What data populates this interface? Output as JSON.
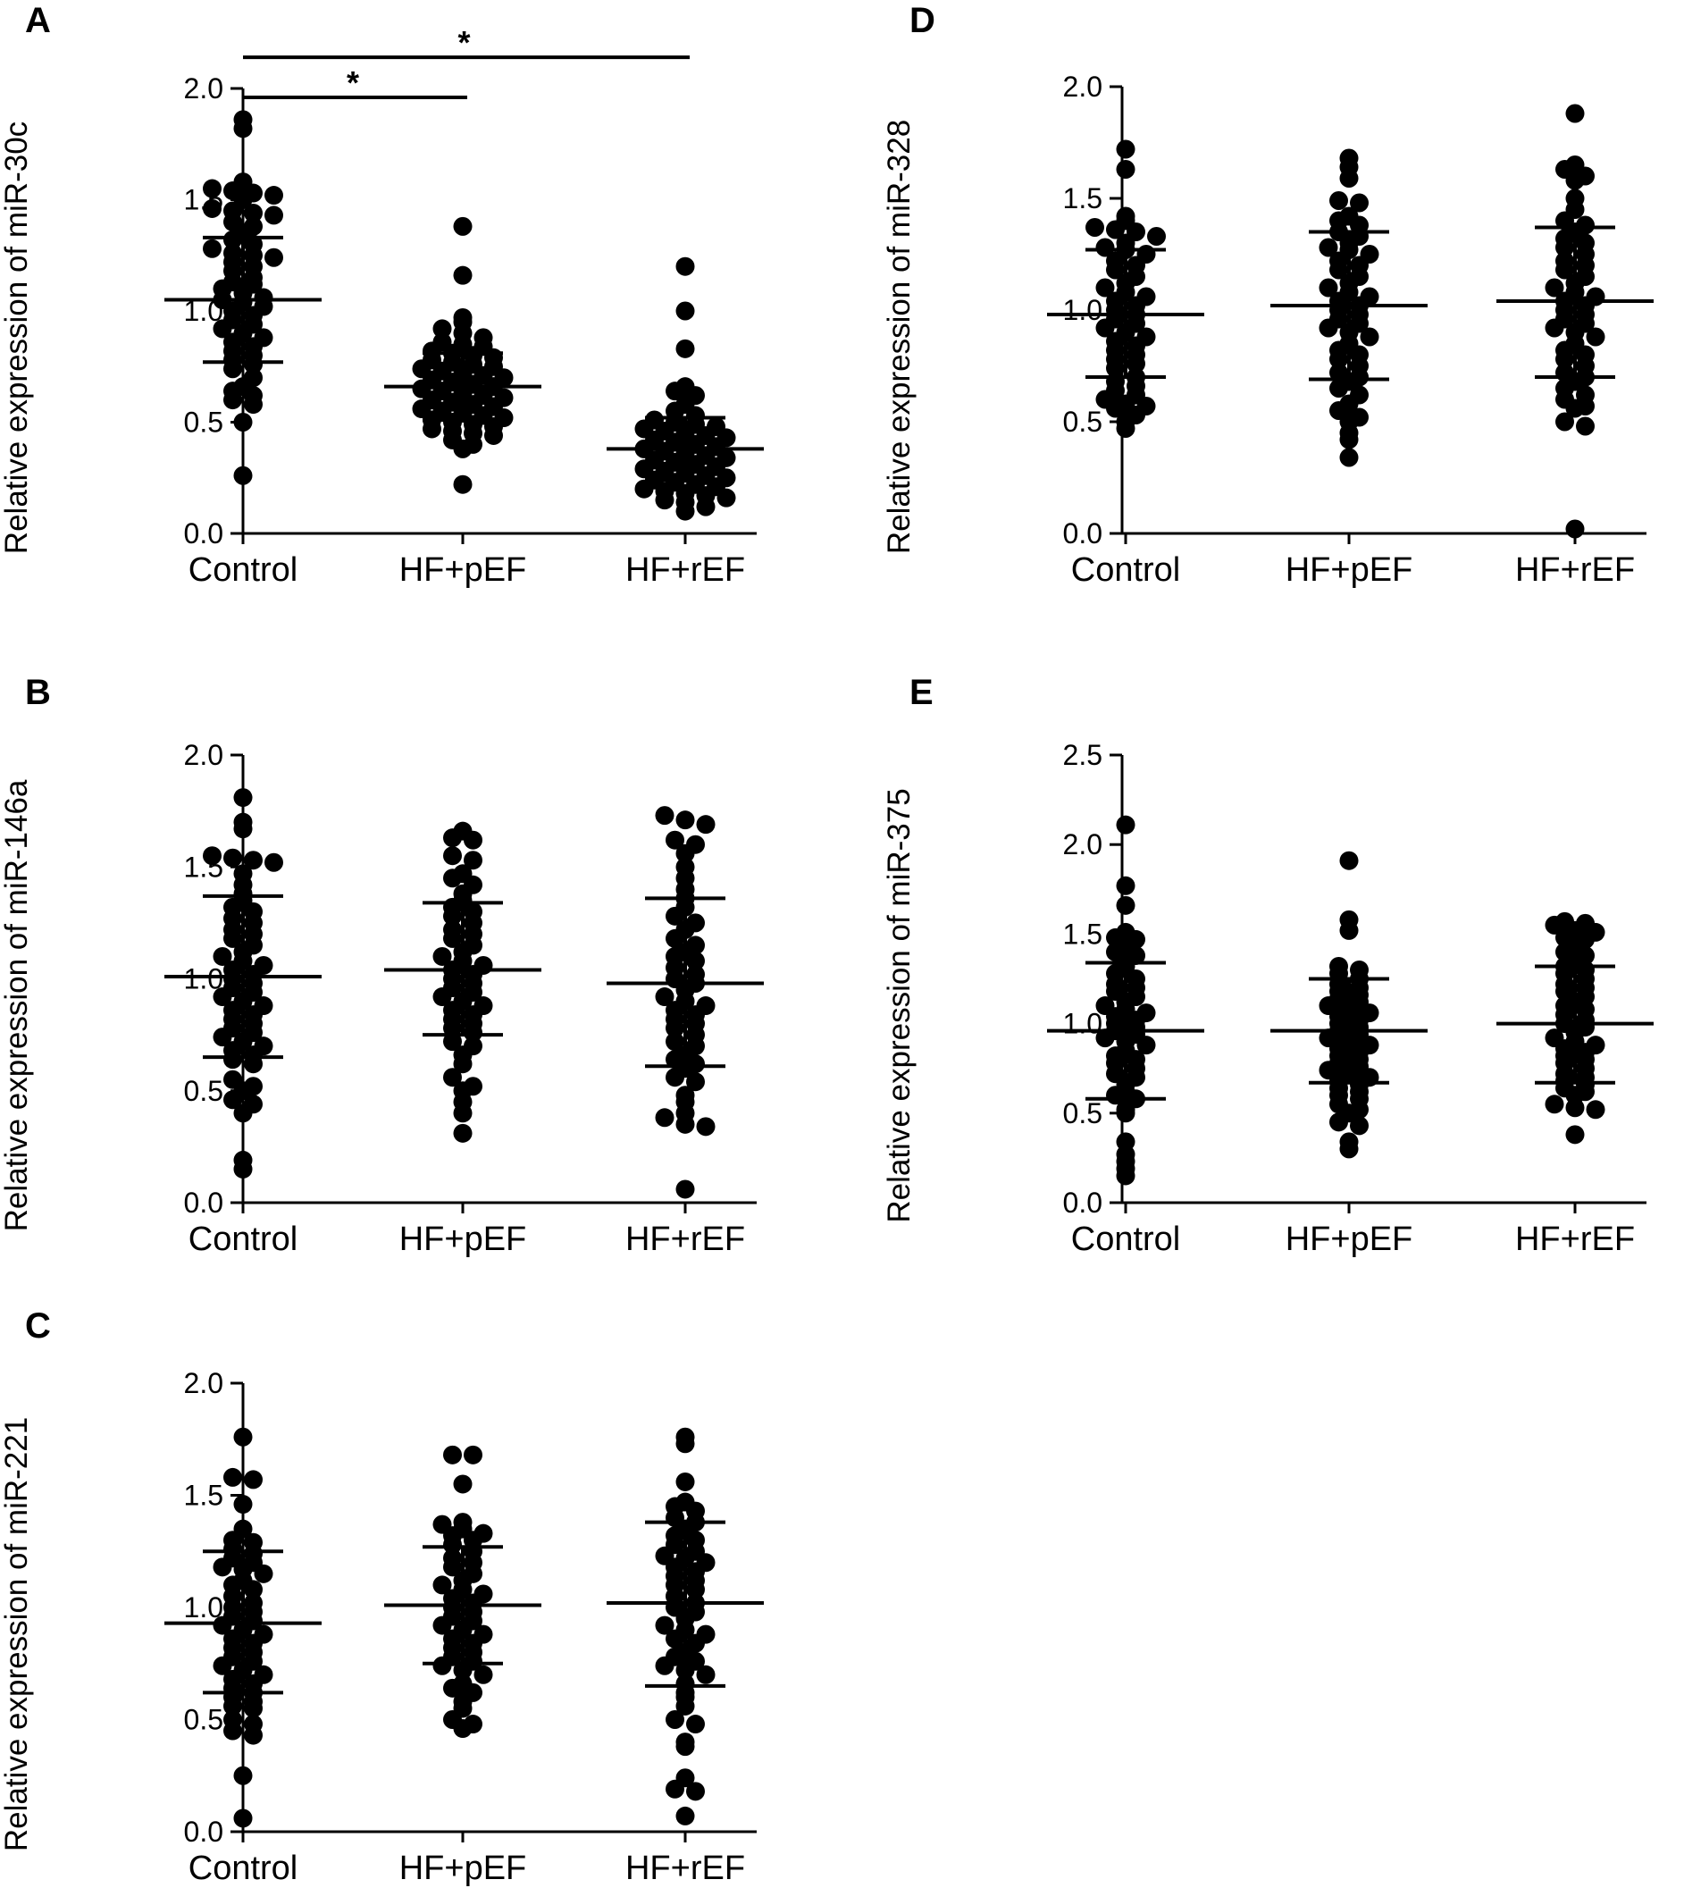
{
  "chart_data": [
    {
      "panel": "A",
      "type": "scatter",
      "ylabel": "Relative expression of miR-30c",
      "categories": [
        "Control",
        "HF+pEF",
        "HF+rEF"
      ],
      "ylim": [
        0,
        2.0
      ],
      "yticks": [
        "0.0",
        "0.5",
        "1.0",
        "1.5",
        "2.0"
      ],
      "series": [
        {
          "category": "Control",
          "mean": 1.05,
          "sd_low": 0.77,
          "sd_high": 1.33,
          "values": [
            1.86,
            1.82,
            1.58,
            1.55,
            1.54,
            1.53,
            1.52,
            1.5,
            1.46,
            1.45,
            1.44,
            1.43,
            1.4,
            1.38,
            1.35,
            1.32,
            1.3,
            1.28,
            1.26,
            1.25,
            1.24,
            1.22,
            1.2,
            1.18,
            1.15,
            1.13,
            1.12,
            1.1,
            1.08,
            1.06,
            1.05,
            1.04,
            1.02,
            1.0,
            0.98,
            0.96,
            0.94,
            0.92,
            0.9,
            0.88,
            0.86,
            0.84,
            0.82,
            0.8,
            0.78,
            0.76,
            0.74,
            0.7,
            0.66,
            0.64,
            0.62,
            0.6,
            0.58,
            0.5,
            0.26
          ]
        },
        {
          "category": "HF+pEF",
          "mean": 0.66,
          "sd_low": 0.51,
          "sd_high": 0.81,
          "values": [
            1.38,
            1.16,
            0.97,
            0.95,
            0.92,
            0.9,
            0.88,
            0.86,
            0.85,
            0.84,
            0.82,
            0.81,
            0.8,
            0.79,
            0.78,
            0.77,
            0.76,
            0.75,
            0.74,
            0.73,
            0.72,
            0.71,
            0.7,
            0.69,
            0.68,
            0.67,
            0.66,
            0.65,
            0.64,
            0.63,
            0.62,
            0.61,
            0.6,
            0.59,
            0.58,
            0.57,
            0.56,
            0.55,
            0.54,
            0.53,
            0.52,
            0.51,
            0.5,
            0.49,
            0.48,
            0.47,
            0.46,
            0.45,
            0.44,
            0.42,
            0.4,
            0.38,
            0.22
          ]
        },
        {
          "category": "HF+rEF",
          "mean": 0.38,
          "sd_low": 0.24,
          "sd_high": 0.52,
          "values": [
            1.2,
            1.0,
            0.83,
            0.66,
            0.64,
            0.62,
            0.58,
            0.55,
            0.53,
            0.51,
            0.5,
            0.49,
            0.48,
            0.47,
            0.46,
            0.45,
            0.44,
            0.43,
            0.42,
            0.41,
            0.4,
            0.39,
            0.38,
            0.37,
            0.36,
            0.35,
            0.34,
            0.33,
            0.32,
            0.31,
            0.3,
            0.29,
            0.28,
            0.27,
            0.26,
            0.25,
            0.24,
            0.23,
            0.22,
            0.21,
            0.2,
            0.19,
            0.18,
            0.17,
            0.16,
            0.15,
            0.14,
            0.12,
            0.1
          ]
        }
      ],
      "significance": [
        {
          "from": "Control",
          "to": "HF+pEF",
          "y": 1.96,
          "label": "*"
        },
        {
          "from": "Control",
          "to": "HF+rEF",
          "y": 2.14,
          "label": "*"
        }
      ]
    },
    {
      "panel": "B",
      "type": "scatter",
      "ylabel": "Relative expression of miR-146a",
      "categories": [
        "Control",
        "HF+pEF",
        "HF+rEF"
      ],
      "ylim": [
        0,
        2.0
      ],
      "yticks": [
        "0.0",
        "0.5",
        "1.0",
        "1.5",
        "2.0"
      ],
      "series": [
        {
          "category": "Control",
          "mean": 1.01,
          "sd_low": 0.65,
          "sd_high": 1.37,
          "values": [
            1.81,
            1.7,
            1.67,
            1.55,
            1.54,
            1.53,
            1.52,
            1.47,
            1.42,
            1.38,
            1.35,
            1.32,
            1.3,
            1.27,
            1.25,
            1.22,
            1.2,
            1.18,
            1.15,
            1.12,
            1.1,
            1.08,
            1.06,
            1.04,
            1.02,
            1.0,
            0.98,
            0.96,
            0.94,
            0.92,
            0.9,
            0.88,
            0.86,
            0.84,
            0.82,
            0.8,
            0.78,
            0.76,
            0.74,
            0.72,
            0.7,
            0.68,
            0.66,
            0.64,
            0.62,
            0.55,
            0.52,
            0.5,
            0.46,
            0.44,
            0.4,
            0.19,
            0.15
          ]
        },
        {
          "category": "HF+pEF",
          "mean": 1.04,
          "sd_low": 0.75,
          "sd_high": 1.34,
          "values": [
            1.66,
            1.63,
            1.62,
            1.55,
            1.53,
            1.47,
            1.45,
            1.42,
            1.38,
            1.35,
            1.32,
            1.3,
            1.28,
            1.25,
            1.22,
            1.2,
            1.18,
            1.15,
            1.12,
            1.1,
            1.08,
            1.06,
            1.04,
            1.02,
            1.0,
            0.98,
            0.96,
            0.94,
            0.92,
            0.9,
            0.88,
            0.86,
            0.84,
            0.82,
            0.8,
            0.78,
            0.76,
            0.72,
            0.7,
            0.66,
            0.62,
            0.56,
            0.52,
            0.5,
            0.45,
            0.4,
            0.31
          ]
        },
        {
          "category": "HF+rEF",
          "mean": 0.98,
          "sd_low": 0.61,
          "sd_high": 1.36,
          "values": [
            1.73,
            1.71,
            1.69,
            1.62,
            1.6,
            1.56,
            1.5,
            1.45,
            1.4,
            1.36,
            1.32,
            1.28,
            1.25,
            1.22,
            1.18,
            1.15,
            1.12,
            1.1,
            1.08,
            1.05,
            1.02,
            1.0,
            0.98,
            0.95,
            0.92,
            0.9,
            0.88,
            0.86,
            0.84,
            0.82,
            0.8,
            0.78,
            0.75,
            0.72,
            0.7,
            0.66,
            0.64,
            0.62,
            0.6,
            0.56,
            0.54,
            0.48,
            0.45,
            0.4,
            0.38,
            0.35,
            0.34,
            0.06
          ]
        }
      ]
    },
    {
      "panel": "C",
      "type": "scatter",
      "ylabel": "Relative expression of miR-221",
      "categories": [
        "Control",
        "HF+pEF",
        "HF+rEF"
      ],
      "ylim": [
        0,
        2.0
      ],
      "yticks": [
        "0.0",
        "0.5",
        "1.0",
        "1.5",
        "2.0"
      ],
      "series": [
        {
          "category": "Control",
          "mean": 0.93,
          "sd_low": 0.62,
          "sd_high": 1.25,
          "values": [
            1.76,
            1.58,
            1.57,
            1.46,
            1.35,
            1.3,
            1.29,
            1.26,
            1.24,
            1.22,
            1.2,
            1.18,
            1.17,
            1.15,
            1.12,
            1.1,
            1.08,
            1.05,
            1.02,
            1.0,
            0.98,
            0.96,
            0.94,
            0.92,
            0.9,
            0.88,
            0.86,
            0.84,
            0.82,
            0.8,
            0.78,
            0.76,
            0.74,
            0.72,
            0.7,
            0.68,
            0.66,
            0.64,
            0.62,
            0.6,
            0.58,
            0.56,
            0.55,
            0.5,
            0.48,
            0.45,
            0.43,
            0.25,
            0.06
          ]
        },
        {
          "category": "HF+pEF",
          "mean": 1.01,
          "sd_low": 0.75,
          "sd_high": 1.27,
          "values": [
            1.68,
            1.68,
            1.55,
            1.38,
            1.37,
            1.35,
            1.33,
            1.32,
            1.3,
            1.28,
            1.25,
            1.22,
            1.2,
            1.18,
            1.15,
            1.12,
            1.1,
            1.08,
            1.06,
            1.04,
            1.02,
            1.0,
            0.98,
            0.96,
            0.94,
            0.92,
            0.9,
            0.88,
            0.86,
            0.84,
            0.82,
            0.8,
            0.78,
            0.76,
            0.74,
            0.72,
            0.7,
            0.66,
            0.64,
            0.62,
            0.58,
            0.55,
            0.5,
            0.48,
            0.46
          ]
        },
        {
          "category": "HF+rEF",
          "mean": 1.02,
          "sd_low": 0.65,
          "sd_high": 1.38,
          "values": [
            1.76,
            1.73,
            1.56,
            1.47,
            1.45,
            1.43,
            1.4,
            1.38,
            1.35,
            1.32,
            1.3,
            1.28,
            1.25,
            1.23,
            1.22,
            1.2,
            1.18,
            1.16,
            1.14,
            1.12,
            1.1,
            1.08,
            1.05,
            1.02,
            1.0,
            0.98,
            0.95,
            0.92,
            0.9,
            0.88,
            0.86,
            0.84,
            0.8,
            0.78,
            0.76,
            0.74,
            0.72,
            0.7,
            0.66,
            0.62,
            0.6,
            0.56,
            0.5,
            0.48,
            0.4,
            0.38,
            0.24,
            0.19,
            0.18,
            0.07
          ]
        }
      ]
    },
    {
      "panel": "D",
      "type": "scatter",
      "ylabel": "Relative expression of miR-328",
      "categories": [
        "Control",
        "HF+pEF",
        "HF+rEF"
      ],
      "ylim": [
        0,
        2.0
      ],
      "yticks": [
        "0.0",
        "0.5",
        "1.0",
        "1.5",
        "2.0"
      ],
      "series": [
        {
          "category": "Control",
          "mean": 0.98,
          "sd_low": 0.7,
          "sd_high": 1.27,
          "values": [
            1.72,
            1.63,
            1.42,
            1.4,
            1.37,
            1.36,
            1.35,
            1.33,
            1.3,
            1.28,
            1.27,
            1.25,
            1.22,
            1.2,
            1.18,
            1.15,
            1.12,
            1.1,
            1.08,
            1.06,
            1.04,
            1.02,
            1.0,
            0.98,
            0.96,
            0.94,
            0.92,
            0.9,
            0.88,
            0.86,
            0.84,
            0.82,
            0.8,
            0.78,
            0.76,
            0.74,
            0.7,
            0.68,
            0.66,
            0.64,
            0.62,
            0.6,
            0.58,
            0.57,
            0.56,
            0.53,
            0.5,
            0.47
          ]
        },
        {
          "category": "HF+pEF",
          "mean": 1.02,
          "sd_low": 0.69,
          "sd_high": 1.35,
          "values": [
            1.68,
            1.64,
            1.59,
            1.49,
            1.48,
            1.42,
            1.4,
            1.38,
            1.35,
            1.33,
            1.3,
            1.28,
            1.27,
            1.25,
            1.22,
            1.2,
            1.18,
            1.15,
            1.12,
            1.1,
            1.08,
            1.06,
            1.04,
            1.02,
            1.0,
            0.98,
            0.96,
            0.94,
            0.92,
            0.9,
            0.88,
            0.85,
            0.82,
            0.8,
            0.78,
            0.75,
            0.72,
            0.7,
            0.68,
            0.65,
            0.62,
            0.58,
            0.55,
            0.52,
            0.5,
            0.45,
            0.42,
            0.34
          ]
        },
        {
          "category": "HF+rEF",
          "mean": 1.04,
          "sd_low": 0.7,
          "sd_high": 1.37,
          "values": [
            1.88,
            1.65,
            1.63,
            1.6,
            1.58,
            1.5,
            1.45,
            1.4,
            1.38,
            1.35,
            1.32,
            1.3,
            1.28,
            1.25,
            1.22,
            1.2,
            1.18,
            1.15,
            1.12,
            1.1,
            1.08,
            1.06,
            1.04,
            1.02,
            1.0,
            0.98,
            0.96,
            0.94,
            0.92,
            0.9,
            0.88,
            0.85,
            0.82,
            0.8,
            0.78,
            0.75,
            0.72,
            0.7,
            0.68,
            0.65,
            0.62,
            0.6,
            0.57,
            0.56,
            0.5,
            0.48,
            0.02
          ]
        }
      ]
    },
    {
      "panel": "E",
      "type": "scatter",
      "ylabel": "Relative expression of miR-375",
      "categories": [
        "Control",
        "HF+pEF",
        "HF+rEF"
      ],
      "ylim": [
        0,
        2.5
      ],
      "yticks": [
        "0.0",
        "0.5",
        "1.0",
        "1.5",
        "2.0",
        "2.5"
      ],
      "series": [
        {
          "category": "Control",
          "mean": 0.96,
          "sd_low": 0.58,
          "sd_high": 1.34,
          "values": [
            2.11,
            1.77,
            1.66,
            1.51,
            1.48,
            1.47,
            1.42,
            1.4,
            1.38,
            1.35,
            1.32,
            1.28,
            1.25,
            1.22,
            1.2,
            1.18,
            1.15,
            1.12,
            1.1,
            1.08,
            1.06,
            1.04,
            1.02,
            1.0,
            0.98,
            0.96,
            0.94,
            0.92,
            0.9,
            0.88,
            0.85,
            0.82,
            0.8,
            0.78,
            0.75,
            0.72,
            0.7,
            0.66,
            0.62,
            0.6,
            0.58,
            0.52,
            0.5,
            0.34,
            0.27,
            0.23,
            0.19,
            0.15
          ]
        },
        {
          "category": "HF+pEF",
          "mean": 0.96,
          "sd_low": 0.67,
          "sd_high": 1.25,
          "values": [
            1.91,
            1.58,
            1.52,
            1.32,
            1.3,
            1.28,
            1.25,
            1.22,
            1.2,
            1.18,
            1.16,
            1.14,
            1.12,
            1.1,
            1.08,
            1.06,
            1.04,
            1.02,
            1.0,
            0.98,
            0.96,
            0.94,
            0.92,
            0.9,
            0.88,
            0.86,
            0.84,
            0.82,
            0.8,
            0.78,
            0.76,
            0.74,
            0.72,
            0.7,
            0.68,
            0.66,
            0.64,
            0.62,
            0.6,
            0.58,
            0.55,
            0.52,
            0.5,
            0.45,
            0.43,
            0.34,
            0.3
          ]
        },
        {
          "category": "HF+rEF",
          "mean": 1.0,
          "sd_low": 0.67,
          "sd_high": 1.32,
          "values": [
            1.57,
            1.56,
            1.55,
            1.52,
            1.51,
            1.48,
            1.47,
            1.45,
            1.4,
            1.38,
            1.35,
            1.32,
            1.3,
            1.28,
            1.25,
            1.22,
            1.2,
            1.18,
            1.15,
            1.12,
            1.1,
            1.08,
            1.05,
            1.02,
            1.0,
            0.98,
            0.95,
            0.92,
            0.9,
            0.88,
            0.86,
            0.84,
            0.82,
            0.8,
            0.78,
            0.75,
            0.72,
            0.7,
            0.68,
            0.66,
            0.64,
            0.62,
            0.6,
            0.55,
            0.53,
            0.52,
            0.38
          ]
        }
      ]
    }
  ]
}
